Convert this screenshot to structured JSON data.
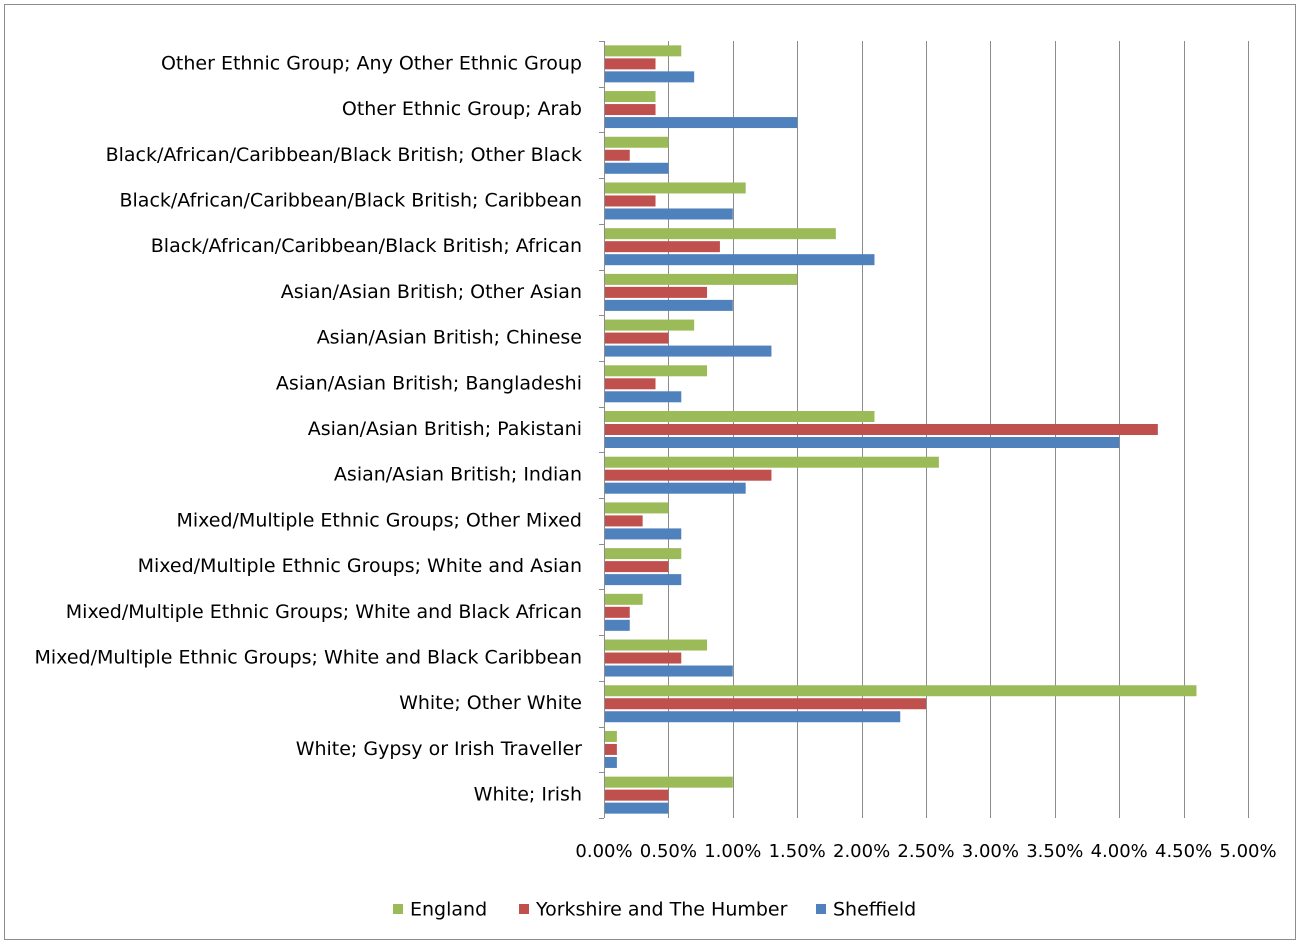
{
  "chart_data": {
    "type": "bar",
    "orientation": "horizontal",
    "categories": [
      "Other Ethnic Group; Any Other Ethnic Group",
      "Other Ethnic Group; Arab",
      "Black/African/Caribbean/Black British; Other Black",
      "Black/African/Caribbean/Black British; Caribbean",
      "Black/African/Caribbean/Black British; African",
      "Asian/Asian British; Other Asian",
      "Asian/Asian British; Chinese",
      "Asian/Asian British; Bangladeshi",
      "Asian/Asian British; Pakistani",
      "Asian/Asian British; Indian",
      "Mixed/Multiple Ethnic Groups; Other Mixed",
      "Mixed/Multiple Ethnic Groups; White and Asian",
      "Mixed/Multiple Ethnic Groups; White and Black African",
      "Mixed/Multiple Ethnic Groups; White and Black Caribbean",
      "White; Other White",
      "White; Gypsy or Irish Traveller",
      "White; Irish"
    ],
    "series": [
      {
        "name": "England",
        "color": "#9bbb59",
        "values": [
          0.6,
          0.4,
          0.5,
          1.1,
          1.8,
          1.5,
          0.7,
          0.8,
          2.1,
          2.6,
          0.5,
          0.6,
          0.3,
          0.8,
          4.6,
          0.1,
          1.0
        ]
      },
      {
        "name": "Yorkshire and The Humber",
        "color": "#c0504d",
        "values": [
          0.4,
          0.4,
          0.2,
          0.4,
          0.9,
          0.8,
          0.5,
          0.4,
          4.3,
          1.3,
          0.3,
          0.5,
          0.2,
          0.6,
          2.5,
          0.1,
          0.5
        ]
      },
      {
        "name": "Sheffield",
        "color": "#4f81bd",
        "values": [
          0.7,
          1.5,
          0.5,
          1.0,
          2.1,
          1.0,
          1.3,
          0.6,
          4.0,
          1.1,
          0.6,
          0.6,
          0.2,
          1.0,
          2.3,
          0.1,
          0.5
        ]
      }
    ],
    "x_ticks": [
      "0.00%",
      "0.50%",
      "1.00%",
      "1.50%",
      "2.00%",
      "2.50%",
      "3.00%",
      "3.50%",
      "4.00%",
      "4.50%",
      "5.00%"
    ],
    "xlim": [
      0,
      5
    ],
    "grid": "vertical",
    "legend": "bottom",
    "title": "",
    "xlabel": "",
    "ylabel": ""
  }
}
